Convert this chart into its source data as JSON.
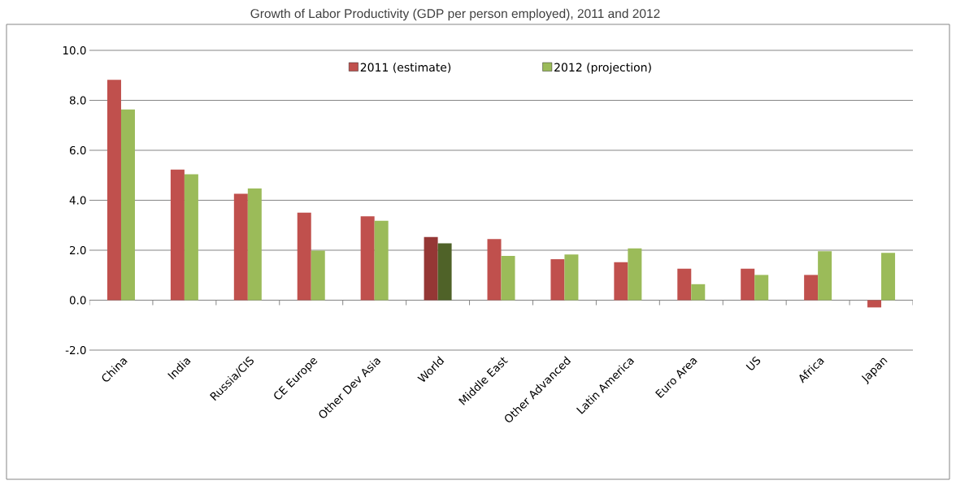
{
  "chart_data": {
    "type": "bar",
    "title": "Growth of Labor Productivity (GDP per person employed), 2011 and 2012",
    "categories": [
      "China",
      "India",
      "Russia/CIS",
      "CE Europe",
      "Other Dev Asia",
      "World",
      "Middle East",
      "Other Advanced",
      "Latin America",
      "Euro Area",
      "US",
      "Africa",
      "Japan"
    ],
    "series": [
      {
        "name": "2011 (estimate)",
        "color": "#c0504d",
        "colors": [
          "#c0504d",
          "#c0504d",
          "#c0504d",
          "#c0504d",
          "#c0504d",
          "#953735",
          "#c0504d",
          "#c0504d",
          "#c0504d",
          "#c0504d",
          "#c0504d",
          "#c0504d",
          "#c0504d"
        ],
        "values": [
          8.82,
          5.23,
          4.26,
          3.5,
          3.36,
          2.53,
          2.45,
          1.64,
          1.52,
          1.26,
          1.26,
          1.01,
          -0.29
        ]
      },
      {
        "name": "2012 (projection)",
        "color": "#9bbb59",
        "colors": [
          "#9bbb59",
          "#9bbb59",
          "#9bbb59",
          "#9bbb59",
          "#9bbb59",
          "#4f6228",
          "#9bbb59",
          "#9bbb59",
          "#9bbb59",
          "#9bbb59",
          "#9bbb59",
          "#9bbb59",
          "#9bbb59"
        ],
        "values": [
          7.63,
          5.04,
          4.47,
          1.98,
          3.18,
          2.28,
          1.77,
          1.83,
          2.07,
          0.64,
          1.01,
          1.96,
          1.89
        ]
      }
    ],
    "ylim": [
      -2,
      10
    ],
    "yticks": [
      {
        "value": -2,
        "label": "-2.0"
      },
      {
        "value": 0,
        "label": "0.0"
      },
      {
        "value": 2,
        "label": "2.0"
      },
      {
        "value": 4,
        "label": "4.0"
      },
      {
        "value": 6,
        "label": "6.0"
      },
      {
        "value": 8,
        "label": "8.0"
      },
      {
        "value": 10,
        "label": "10.0"
      }
    ],
    "grid": "y",
    "legend": "top"
  }
}
